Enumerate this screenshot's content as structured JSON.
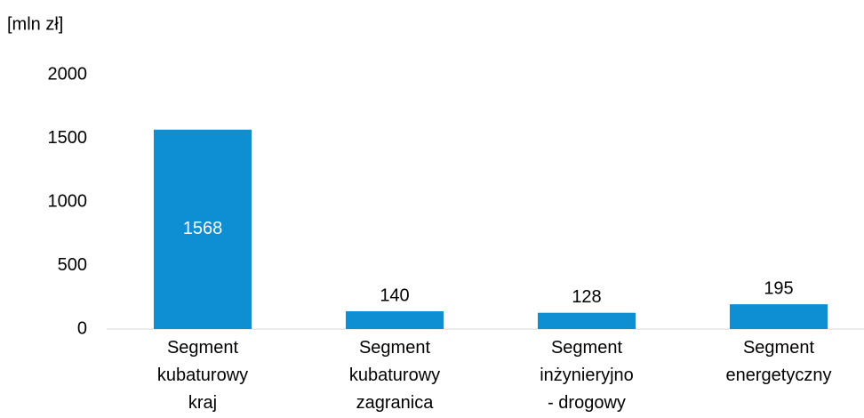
{
  "chart_data": {
    "type": "bar",
    "y_axis_label": "[mln zł]",
    "categories": [
      "Segment\nkubaturowy\nkraj",
      "Segment\nkubaturowy\nzagranica",
      "Segment\ninżynieryjno\n- drogowy",
      "Segment\nenergetyczny"
    ],
    "values": [
      1568,
      140,
      128,
      195
    ],
    "color": "#0e8fd4",
    "ylim": [
      0,
      2000
    ],
    "yticks": [
      0,
      500,
      1000,
      1500,
      2000
    ],
    "grid": false
  }
}
